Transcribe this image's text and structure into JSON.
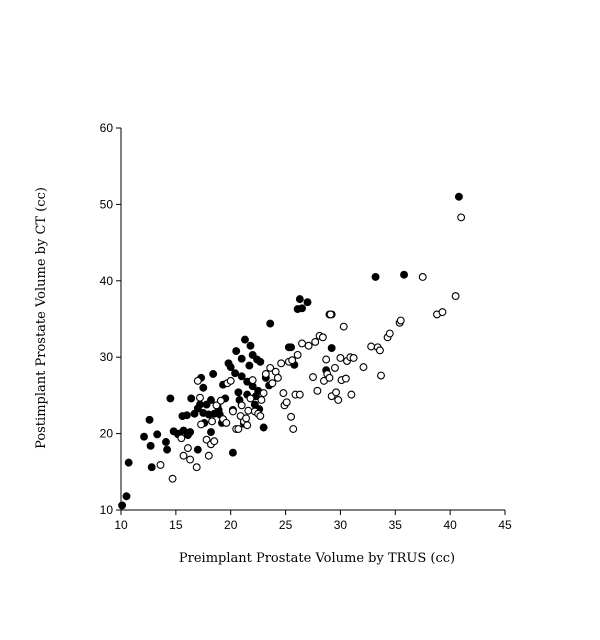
{
  "chart_data": {
    "type": "scatter",
    "title": "",
    "xlabel": "Preimplant Prostate Volume by TRUS (cc)",
    "ylabel": "Postimplant Prostate Volume by CT (cc)",
    "xlim": [
      10,
      45
    ],
    "ylim": [
      10,
      60
    ],
    "xticks": [
      "10",
      "15",
      "20",
      "25",
      "30",
      "35",
      "40",
      "45"
    ],
    "yticks": [
      "10",
      "20",
      "30",
      "40",
      "50",
      "60"
    ],
    "grid": false,
    "legend": "none",
    "series": [
      {
        "marker": "filled-circle",
        "color": "#000000",
        "points": [
          [
            10.1,
            10.6
          ],
          [
            10.5,
            11.8
          ],
          [
            10.7,
            16.2
          ],
          [
            12.1,
            19.6
          ],
          [
            12.6,
            21.8
          ],
          [
            12.7,
            18.4
          ],
          [
            12.8,
            15.6
          ],
          [
            13.3,
            19.9
          ],
          [
            14.1,
            18.9
          ],
          [
            14.2,
            17.9
          ],
          [
            14.5,
            24.6
          ],
          [
            14.8,
            20.3
          ],
          [
            15.2,
            19.9
          ],
          [
            15.3,
            20.0
          ],
          [
            15.6,
            22.3
          ],
          [
            15.7,
            20.4
          ],
          [
            16.0,
            22.4
          ],
          [
            16.1,
            19.8
          ],
          [
            16.3,
            20.2
          ],
          [
            16.4,
            24.6
          ],
          [
            16.7,
            22.6
          ],
          [
            17.0,
            23.3
          ],
          [
            17.0,
            17.9
          ],
          [
            17.2,
            23.8
          ],
          [
            17.3,
            27.3
          ],
          [
            17.5,
            26.0
          ],
          [
            17.5,
            22.7
          ],
          [
            17.6,
            21.4
          ],
          [
            17.8,
            23.8
          ],
          [
            18.0,
            22.5
          ],
          [
            18.2,
            24.4
          ],
          [
            18.2,
            20.2
          ],
          [
            18.4,
            27.8
          ],
          [
            18.5,
            22.6
          ],
          [
            18.8,
            23.6
          ],
          [
            18.9,
            23.1
          ],
          [
            19.0,
            22.5
          ],
          [
            19.2,
            21.4
          ],
          [
            19.3,
            26.4
          ],
          [
            19.5,
            24.6
          ],
          [
            19.8,
            29.2
          ],
          [
            20.0,
            28.7
          ],
          [
            20.2,
            17.5
          ],
          [
            20.2,
            23.1
          ],
          [
            20.4,
            27.9
          ],
          [
            20.5,
            30.8
          ],
          [
            20.7,
            25.4
          ],
          [
            20.8,
            24.4
          ],
          [
            21.0,
            27.5
          ],
          [
            21.0,
            29.8
          ],
          [
            21.2,
            21.3
          ],
          [
            21.3,
            32.3
          ],
          [
            21.5,
            26.8
          ],
          [
            21.5,
            25.1
          ],
          [
            21.7,
            28.9
          ],
          [
            21.8,
            31.5
          ],
          [
            22.0,
            30.3
          ],
          [
            22.0,
            26.2
          ],
          [
            22.2,
            23.8
          ],
          [
            22.3,
            24.9
          ],
          [
            22.4,
            29.7
          ],
          [
            22.5,
            25.6
          ],
          [
            22.6,
            23.2
          ],
          [
            22.7,
            29.4
          ],
          [
            23.0,
            20.8
          ],
          [
            23.2,
            27.3
          ],
          [
            23.5,
            26.3
          ],
          [
            23.6,
            34.4
          ],
          [
            25.3,
            31.3
          ],
          [
            25.5,
            31.3
          ],
          [
            25.8,
            29.0
          ],
          [
            26.1,
            36.3
          ],
          [
            26.3,
            37.6
          ],
          [
            26.5,
            36.4
          ],
          [
            27.0,
            37.2
          ],
          [
            28.7,
            28.3
          ],
          [
            29.0,
            35.6
          ],
          [
            29.2,
            35.6
          ],
          [
            29.2,
            31.2
          ],
          [
            33.2,
            40.5
          ],
          [
            35.8,
            40.8
          ],
          [
            40.8,
            51.0
          ]
        ]
      },
      {
        "marker": "open-circle",
        "color": "#000000",
        "points": [
          [
            13.6,
            15.9
          ],
          [
            14.7,
            14.1
          ],
          [
            15.5,
            19.4
          ],
          [
            15.7,
            17.1
          ],
          [
            16.1,
            18.1
          ],
          [
            16.3,
            16.6
          ],
          [
            16.9,
            15.6
          ],
          [
            17.0,
            26.9
          ],
          [
            17.2,
            24.7
          ],
          [
            17.3,
            21.2
          ],
          [
            17.8,
            19.2
          ],
          [
            18.0,
            17.1
          ],
          [
            18.2,
            18.6
          ],
          [
            18.3,
            21.6
          ],
          [
            18.5,
            19.0
          ],
          [
            18.7,
            23.7
          ],
          [
            19.1,
            24.3
          ],
          [
            19.3,
            21.9
          ],
          [
            19.6,
            21.4
          ],
          [
            19.7,
            26.6
          ],
          [
            20.0,
            26.9
          ],
          [
            20.2,
            22.9
          ],
          [
            20.5,
            20.6
          ],
          [
            20.7,
            20.6
          ],
          [
            20.9,
            22.3
          ],
          [
            21.0,
            23.7
          ],
          [
            21.2,
            21.6
          ],
          [
            21.4,
            22.0
          ],
          [
            21.5,
            21.1
          ],
          [
            21.6,
            23.0
          ],
          [
            21.8,
            24.6
          ],
          [
            22.0,
            27.0
          ],
          [
            22.2,
            22.9
          ],
          [
            22.5,
            22.6
          ],
          [
            22.7,
            22.3
          ],
          [
            22.8,
            24.4
          ],
          [
            23.0,
            25.3
          ],
          [
            23.2,
            27.8
          ],
          [
            23.6,
            28.6
          ],
          [
            23.8,
            26.6
          ],
          [
            24.1,
            28.1
          ],
          [
            24.3,
            27.3
          ],
          [
            24.6,
            29.2
          ],
          [
            24.8,
            25.3
          ],
          [
            24.9,
            23.7
          ],
          [
            25.1,
            24.1
          ],
          [
            25.3,
            29.4
          ],
          [
            25.5,
            22.2
          ],
          [
            25.6,
            29.6
          ],
          [
            25.7,
            20.6
          ],
          [
            25.9,
            25.1
          ],
          [
            26.1,
            30.3
          ],
          [
            26.3,
            25.1
          ],
          [
            26.5,
            31.8
          ],
          [
            27.1,
            31.5
          ],
          [
            27.5,
            27.4
          ],
          [
            27.7,
            32.0
          ],
          [
            27.9,
            25.6
          ],
          [
            28.1,
            32.8
          ],
          [
            28.4,
            32.6
          ],
          [
            28.5,
            26.9
          ],
          [
            28.7,
            29.7
          ],
          [
            28.8,
            27.8
          ],
          [
            29.0,
            27.3
          ],
          [
            29.1,
            35.6
          ],
          [
            29.2,
            24.9
          ],
          [
            29.5,
            28.6
          ],
          [
            29.6,
            25.4
          ],
          [
            29.8,
            24.4
          ],
          [
            30.0,
            29.9
          ],
          [
            30.1,
            27.0
          ],
          [
            30.3,
            34.0
          ],
          [
            30.5,
            27.2
          ],
          [
            30.6,
            29.5
          ],
          [
            30.9,
            30.0
          ],
          [
            31.0,
            25.1
          ],
          [
            31.2,
            29.9
          ],
          [
            32.1,
            28.7
          ],
          [
            32.8,
            31.4
          ],
          [
            33.4,
            31.3
          ],
          [
            33.6,
            30.9
          ],
          [
            33.7,
            27.6
          ],
          [
            34.3,
            32.6
          ],
          [
            34.5,
            33.1
          ],
          [
            35.4,
            34.5
          ],
          [
            35.5,
            34.8
          ],
          [
            37.5,
            40.5
          ],
          [
            38.8,
            35.6
          ],
          [
            39.3,
            35.9
          ],
          [
            40.5,
            38.0
          ],
          [
            41.0,
            48.3
          ]
        ]
      }
    ]
  }
}
